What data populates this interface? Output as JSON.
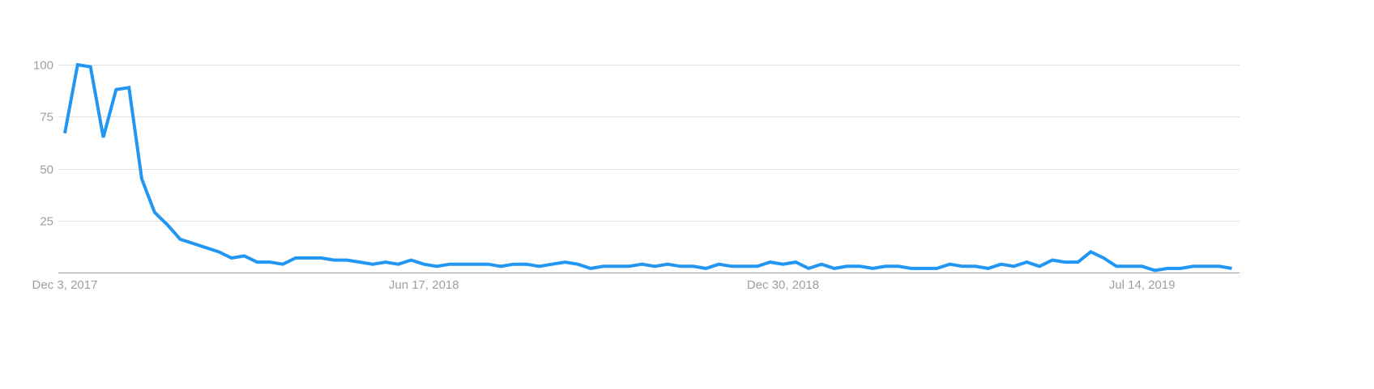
{
  "chart_data": {
    "type": "line",
    "title": "",
    "xlabel": "",
    "ylabel": "",
    "ylim": [
      0,
      100
    ],
    "grid": true,
    "line_color": "#2196f3",
    "y_ticks": [
      "100",
      "75",
      "50",
      "25"
    ],
    "y_tick_values": [
      100,
      75,
      50,
      25
    ],
    "x_tick_labels": [
      "Dec 3, 2017",
      "Jun 17, 2018",
      "Dec 30, 2018",
      "Jul 14, 2019"
    ],
    "x_tick_dates": [
      "2017-12-03",
      "2018-06-17",
      "2018-12-30",
      "2019-07-14"
    ],
    "x": [
      "2017-12-03",
      "2017-12-10",
      "2017-12-17",
      "2017-12-24",
      "2017-12-31",
      "2018-01-07",
      "2018-01-14",
      "2018-01-21",
      "2018-01-28",
      "2018-02-04",
      "2018-02-11",
      "2018-02-18",
      "2018-02-25",
      "2018-03-04",
      "2018-03-11",
      "2018-03-18",
      "2018-03-25",
      "2018-04-01",
      "2018-04-08",
      "2018-04-15",
      "2018-04-22",
      "2018-04-29",
      "2018-05-06",
      "2018-05-13",
      "2018-05-20",
      "2018-05-27",
      "2018-06-03",
      "2018-06-10",
      "2018-06-17",
      "2018-06-24",
      "2018-07-01",
      "2018-07-08",
      "2018-07-15",
      "2018-07-22",
      "2018-07-29",
      "2018-08-05",
      "2018-08-12",
      "2018-08-19",
      "2018-08-26",
      "2018-09-02",
      "2018-09-09",
      "2018-09-16",
      "2018-09-23",
      "2018-09-30",
      "2018-10-07",
      "2018-10-14",
      "2018-10-21",
      "2018-10-28",
      "2018-11-04",
      "2018-11-11",
      "2018-11-18",
      "2018-11-25",
      "2018-12-02",
      "2018-12-09",
      "2018-12-16",
      "2018-12-23",
      "2018-12-30",
      "2019-01-06",
      "2019-01-13",
      "2019-01-20",
      "2019-01-27",
      "2019-02-03",
      "2019-02-10",
      "2019-02-17",
      "2019-02-24",
      "2019-03-03",
      "2019-03-10",
      "2019-03-17",
      "2019-03-24",
      "2019-03-31",
      "2019-04-07",
      "2019-04-14",
      "2019-04-21",
      "2019-04-28",
      "2019-05-05",
      "2019-05-12",
      "2019-05-19",
      "2019-05-26",
      "2019-06-02",
      "2019-06-09",
      "2019-06-16",
      "2019-06-23",
      "2019-06-30",
      "2019-07-07",
      "2019-07-14",
      "2019-07-21",
      "2019-07-28",
      "2019-08-04",
      "2019-08-11",
      "2019-08-18",
      "2019-08-25",
      "2019-09-01"
    ],
    "values": [
      67,
      100,
      99,
      65,
      88,
      89,
      45,
      29,
      23,
      16,
      14,
      12,
      10,
      7,
      8,
      5,
      5,
      4,
      7,
      7,
      7,
      6,
      6,
      5,
      4,
      5,
      4,
      6,
      4,
      3,
      4,
      4,
      4,
      4,
      3,
      4,
      4,
      3,
      4,
      5,
      4,
      2,
      3,
      3,
      3,
      4,
      3,
      4,
      3,
      3,
      2,
      4,
      3,
      3,
      3,
      5,
      4,
      5,
      2,
      4,
      2,
      3,
      3,
      2,
      3,
      3,
      2,
      2,
      2,
      4,
      3,
      3,
      2,
      4,
      3,
      5,
      3,
      6,
      5,
      5,
      10,
      7,
      3,
      3,
      3,
      1,
      2,
      2,
      3,
      3,
      3,
      2
    ]
  }
}
